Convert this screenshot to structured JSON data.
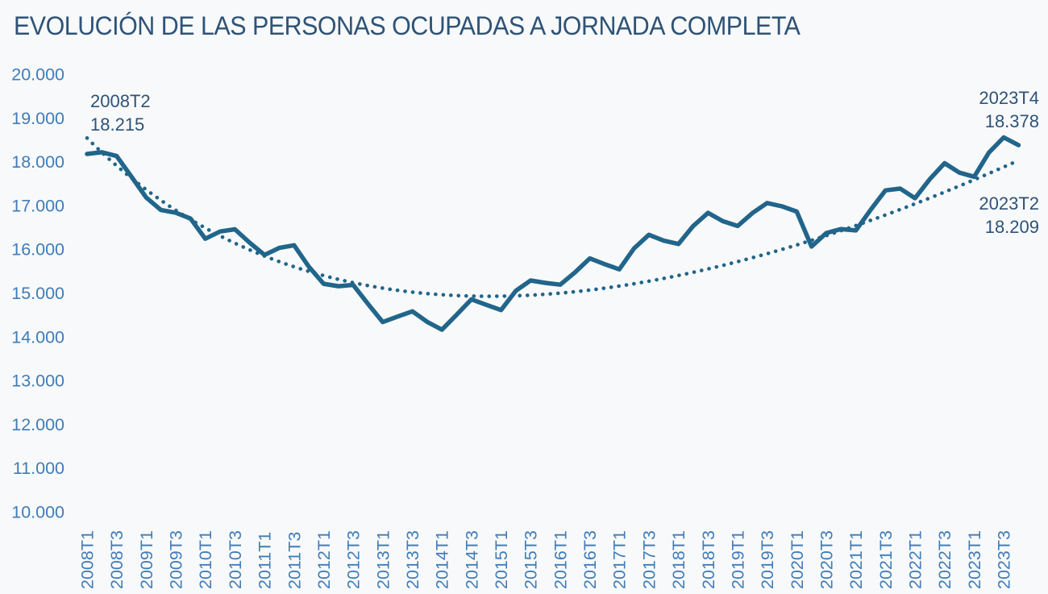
{
  "page": {
    "background_color": "#F8F9FA"
  },
  "chart_data": {
    "type": "line",
    "title": "EVOLUCIÓN DE LAS PERSONAS OCUPADAS A JORNADA COMPLETA",
    "title_color": "#2E5377",
    "axis_label_color": "#407CB8",
    "line_color": "#21658A",
    "grid": "off",
    "legend": "none",
    "y_axis": {
      "min": 10000,
      "max": 20000,
      "step": 1000,
      "tick_labels": [
        "20.000",
        "19.000",
        "18.000",
        "17.000",
        "16.000",
        "15.000",
        "14.000",
        "13.000",
        "12.000",
        "11.000",
        "10.000"
      ]
    },
    "x_axis": {
      "tick_labels_shown_every": "2 quarters",
      "tick_labels": [
        "2008T1",
        "2008T3",
        "2009T1",
        "2009T3",
        "2010T1",
        "2010T3",
        "2011T1",
        "2011T3",
        "2012T1",
        "2012T3",
        "2013T1",
        "2013T3",
        "2014T1",
        "2014T3",
        "2015T1",
        "2015T3",
        "2016T1",
        "2016T3",
        "2017T1",
        "2017T3",
        "2018T1",
        "2018T3",
        "2019T1",
        "2019T3",
        "2020T1",
        "2020T3",
        "2021T1",
        "2021T3",
        "2022T1",
        "2022T3",
        "2023T1",
        "2023T3"
      ]
    },
    "categories": [
      "2008T1",
      "2008T2",
      "2008T3",
      "2008T4",
      "2009T1",
      "2009T2",
      "2009T3",
      "2009T4",
      "2010T1",
      "2010T2",
      "2010T3",
      "2010T4",
      "2011T1",
      "2011T2",
      "2011T3",
      "2011T4",
      "2012T1",
      "2012T2",
      "2012T3",
      "2012T4",
      "2013T1",
      "2013T2",
      "2013T3",
      "2013T4",
      "2014T1",
      "2014T2",
      "2014T3",
      "2014T4",
      "2015T1",
      "2015T2",
      "2015T3",
      "2015T4",
      "2016T1",
      "2016T2",
      "2016T3",
      "2016T4",
      "2017T1",
      "2017T2",
      "2017T3",
      "2017T4",
      "2018T1",
      "2018T2",
      "2018T3",
      "2018T4",
      "2019T1",
      "2019T2",
      "2019T3",
      "2019T4",
      "2020T1",
      "2020T2",
      "2020T3",
      "2020T4",
      "2021T1",
      "2021T2",
      "2021T3",
      "2021T4",
      "2022T1",
      "2022T2",
      "2022T3",
      "2022T4",
      "2023T1",
      "2023T2",
      "2023T3",
      "2023T4"
    ],
    "series": [
      {
        "name": "Personas ocupadas a jornada completa",
        "style": "solid",
        "values": [
          18176,
          18215,
          18128,
          17660,
          17180,
          16895,
          16835,
          16700,
          16240,
          16405,
          16455,
          16150,
          15870,
          16030,
          16090,
          15600,
          15210,
          15155,
          15185,
          14750,
          14335,
          14460,
          14580,
          14340,
          14160,
          14505,
          14855,
          14730,
          14610,
          15050,
          15285,
          15230,
          15190,
          15470,
          15790,
          15660,
          15540,
          16020,
          16330,
          16195,
          16120,
          16530,
          16830,
          16640,
          16530,
          16825,
          17055,
          16980,
          16860,
          16060,
          16370,
          16460,
          16430,
          16900,
          17345,
          17385,
          17165,
          17600,
          17965,
          17750,
          17655,
          18209,
          18555,
          18378
        ]
      }
    ],
    "trendline": {
      "style": "dotted",
      "anchors": [
        {
          "x_index": 0,
          "value": 18540
        },
        {
          "x_index": 26,
          "value": 14930
        },
        {
          "x_index": 63,
          "value": 18030
        }
      ]
    },
    "annotations": [
      {
        "id": "start",
        "quarter": "2008T2",
        "value_label": "18.215"
      },
      {
        "id": "end-peak",
        "quarter": "2023T4",
        "value_label": "18.378"
      },
      {
        "id": "end-mid",
        "quarter": "2023T2",
        "value_label": "18.209"
      }
    ]
  }
}
